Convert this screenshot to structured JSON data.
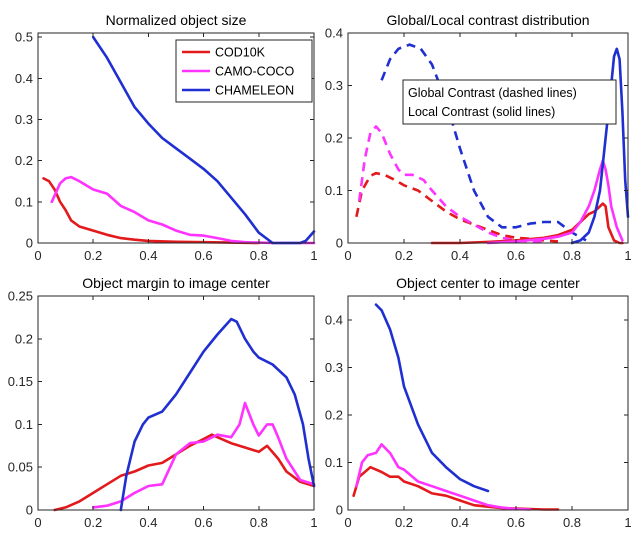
{
  "colors": {
    "COD10K": "#e31a1c",
    "CAMO-COCO": "#ff33ff",
    "CHAMELEON": "#1f2fd1"
  },
  "legend": {
    "location": "top-right of top-left panel",
    "entries": [
      "COD10K",
      "CAMO-COCO",
      "CHAMELEON"
    ]
  },
  "annotation": {
    "lines": [
      "Global Contrast (dashed lines)",
      "Local Contrast (solid lines)"
    ]
  },
  "chart_data": [
    {
      "type": "line",
      "title": "Normalized object size",
      "xlim": [
        0,
        1
      ],
      "ylim": [
        0,
        0.51
      ],
      "xticks": [
        0,
        0.2,
        0.4,
        0.6,
        0.8,
        1
      ],
      "xtick_labels": [
        "0",
        "0.2",
        "0.4",
        "0.6",
        "0.8",
        "1"
      ],
      "yticks": [
        0,
        0.1,
        0.2,
        0.3,
        0.4,
        0.5
      ],
      "ytick_labels": [
        "0",
        "0.1",
        "0.2",
        "0.3",
        "0.4",
        "0.5"
      ],
      "series": [
        {
          "name": "COD10K",
          "style": "solid",
          "x": [
            0.02,
            0.04,
            0.06,
            0.08,
            0.1,
            0.12,
            0.15,
            0.2,
            0.25,
            0.3,
            0.35,
            0.4,
            0.5,
            0.6,
            0.7,
            0.8
          ],
          "y": [
            0.157,
            0.15,
            0.13,
            0.1,
            0.08,
            0.055,
            0.04,
            0.03,
            0.02,
            0.012,
            0.008,
            0.005,
            0.003,
            0.002,
            0.001,
            0.0
          ]
        },
        {
          "name": "CAMO-COCO",
          "style": "solid",
          "x": [
            0.05,
            0.08,
            0.1,
            0.12,
            0.15,
            0.2,
            0.25,
            0.3,
            0.35,
            0.4,
            0.45,
            0.5,
            0.55,
            0.6,
            0.65,
            0.7,
            0.75,
            0.8,
            0.85,
            0.9,
            0.95,
            1.0
          ],
          "y": [
            0.1,
            0.145,
            0.157,
            0.16,
            0.15,
            0.13,
            0.12,
            0.09,
            0.075,
            0.055,
            0.045,
            0.03,
            0.02,
            0.018,
            0.012,
            0.005,
            0.002,
            0.001,
            0.0,
            0.0,
            0.0,
            0.0
          ]
        },
        {
          "name": "CHAMELEON",
          "style": "solid",
          "x": [
            0.2,
            0.25,
            0.3,
            0.35,
            0.4,
            0.45,
            0.5,
            0.55,
            0.6,
            0.65,
            0.7,
            0.75,
            0.8,
            0.85,
            0.9,
            0.95,
            0.97,
            1.0
          ],
          "y": [
            0.5,
            0.45,
            0.39,
            0.33,
            0.29,
            0.255,
            0.23,
            0.205,
            0.18,
            0.15,
            0.11,
            0.07,
            0.025,
            0.0,
            0.0,
            0.0,
            0.005,
            0.028
          ]
        }
      ]
    },
    {
      "type": "line",
      "title": "Global/Local contrast distribution",
      "xlim": [
        0,
        1
      ],
      "ylim": [
        0,
        0.4
      ],
      "xticks": [
        0,
        0.2,
        0.4,
        0.6,
        0.8,
        1
      ],
      "xtick_labels": [
        "0",
        "0.2",
        "0.4",
        "0.6",
        "0.8",
        "1"
      ],
      "yticks": [
        0,
        0.1,
        0.2,
        0.3,
        0.4
      ],
      "ytick_labels": [
        "0",
        "0.1",
        "0.2",
        "0.3",
        "0.4"
      ],
      "series": [
        {
          "name": "COD10K",
          "style": "dashed",
          "x": [
            0.03,
            0.05,
            0.08,
            0.1,
            0.13,
            0.16,
            0.2,
            0.25,
            0.3,
            0.35,
            0.4,
            0.45,
            0.5,
            0.55,
            0.6,
            0.65,
            0.7,
            0.75
          ],
          "y": [
            0.05,
            0.1,
            0.128,
            0.133,
            0.13,
            0.122,
            0.11,
            0.1,
            0.08,
            0.06,
            0.045,
            0.035,
            0.025,
            0.015,
            0.01,
            0.008,
            0.005,
            0.003
          ]
        },
        {
          "name": "CAMO-COCO",
          "style": "dashed",
          "x": [
            0.04,
            0.06,
            0.08,
            0.1,
            0.12,
            0.15,
            0.18,
            0.2,
            0.23,
            0.27,
            0.3,
            0.35,
            0.4,
            0.45,
            0.5,
            0.55,
            0.6,
            0.65,
            0.7
          ],
          "y": [
            0.08,
            0.16,
            0.21,
            0.222,
            0.21,
            0.17,
            0.14,
            0.13,
            0.13,
            0.12,
            0.1,
            0.07,
            0.05,
            0.035,
            0.02,
            0.01,
            0.005,
            0.003,
            0.002
          ]
        },
        {
          "name": "CHAMELEON",
          "style": "dashed",
          "x": [
            0.12,
            0.15,
            0.18,
            0.22,
            0.26,
            0.3,
            0.35,
            0.4,
            0.45,
            0.5,
            0.55,
            0.6,
            0.65,
            0.7,
            0.75,
            0.8,
            0.85
          ],
          "y": [
            0.31,
            0.35,
            0.37,
            0.378,
            0.37,
            0.34,
            0.27,
            0.18,
            0.1,
            0.05,
            0.03,
            0.03,
            0.037,
            0.04,
            0.04,
            0.02,
            0.005
          ]
        },
        {
          "name": "COD10K",
          "style": "solid",
          "x": [
            0.3,
            0.4,
            0.5,
            0.6,
            0.7,
            0.75,
            0.8,
            0.83,
            0.86,
            0.88,
            0.9,
            0.91,
            0.92,
            0.93,
            0.95,
            0.97,
            0.98
          ],
          "y": [
            0.0,
            0.0,
            0.002,
            0.005,
            0.01,
            0.015,
            0.025,
            0.04,
            0.055,
            0.06,
            0.07,
            0.075,
            0.07,
            0.03,
            0.005,
            0.0,
            0.0
          ]
        },
        {
          "name": "CAMO-COCO",
          "style": "solid",
          "x": [
            0.5,
            0.6,
            0.7,
            0.75,
            0.8,
            0.83,
            0.86,
            0.88,
            0.9,
            0.91,
            0.92,
            0.93,
            0.94,
            0.96,
            0.98
          ],
          "y": [
            0.0,
            0.003,
            0.008,
            0.012,
            0.02,
            0.04,
            0.07,
            0.1,
            0.14,
            0.157,
            0.14,
            0.11,
            0.07,
            0.03,
            0.005
          ]
        },
        {
          "name": "CHAMELEON",
          "style": "solid",
          "x": [
            0.8,
            0.83,
            0.86,
            0.88,
            0.9,
            0.92,
            0.94,
            0.95,
            0.96,
            0.97,
            0.98,
            0.99,
            1.0
          ],
          "y": [
            0.0,
            0.005,
            0.02,
            0.05,
            0.1,
            0.2,
            0.3,
            0.355,
            0.37,
            0.35,
            0.25,
            0.12,
            0.05
          ]
        }
      ]
    },
    {
      "type": "line",
      "title": "Object margin to image center",
      "xlim": [
        0,
        1
      ],
      "ylim": [
        0,
        0.25
      ],
      "xticks": [
        0,
        0.2,
        0.4,
        0.6,
        0.8,
        1
      ],
      "xtick_labels": [
        "0",
        "0.2",
        "0.4",
        "0.6",
        "0.8",
        "1"
      ],
      "yticks": [
        0,
        0.05,
        0.1,
        0.15,
        0.2,
        0.25
      ],
      "ytick_labels": [
        "0",
        "0.05",
        "0.1",
        "0.15",
        "0.2",
        "0.25"
      ],
      "series": [
        {
          "name": "COD10K",
          "style": "solid",
          "x": [
            0.06,
            0.1,
            0.15,
            0.2,
            0.25,
            0.3,
            0.35,
            0.4,
            0.45,
            0.5,
            0.55,
            0.6,
            0.63,
            0.65,
            0.7,
            0.75,
            0.8,
            0.83,
            0.87,
            0.9,
            0.95,
            1.0
          ],
          "y": [
            0.0,
            0.003,
            0.01,
            0.02,
            0.03,
            0.04,
            0.045,
            0.052,
            0.055,
            0.065,
            0.075,
            0.083,
            0.088,
            0.085,
            0.078,
            0.073,
            0.068,
            0.075,
            0.06,
            0.045,
            0.033,
            0.028
          ]
        },
        {
          "name": "CAMO-COCO",
          "style": "solid",
          "x": [
            0.2,
            0.25,
            0.3,
            0.35,
            0.4,
            0.45,
            0.5,
            0.55,
            0.6,
            0.65,
            0.7,
            0.73,
            0.75,
            0.78,
            0.8,
            0.83,
            0.85,
            0.87,
            0.9,
            0.95,
            1.0
          ],
          "y": [
            0.003,
            0.005,
            0.01,
            0.02,
            0.028,
            0.03,
            0.065,
            0.078,
            0.08,
            0.088,
            0.085,
            0.1,
            0.125,
            0.1,
            0.087,
            0.1,
            0.1,
            0.085,
            0.06,
            0.035,
            0.03
          ]
        },
        {
          "name": "CHAMELEON",
          "style": "solid",
          "x": [
            0.3,
            0.32,
            0.35,
            0.38,
            0.4,
            0.45,
            0.5,
            0.55,
            0.6,
            0.65,
            0.7,
            0.72,
            0.75,
            0.78,
            0.8,
            0.85,
            0.9,
            0.93,
            0.96,
            0.98,
            1.0
          ],
          "y": [
            0.0,
            0.04,
            0.08,
            0.1,
            0.108,
            0.115,
            0.135,
            0.16,
            0.185,
            0.205,
            0.223,
            0.22,
            0.2,
            0.185,
            0.178,
            0.17,
            0.155,
            0.135,
            0.1,
            0.06,
            0.028
          ]
        }
      ]
    },
    {
      "type": "line",
      "title": "Object center to image center",
      "xlim": [
        0,
        1
      ],
      "ylim": [
        0,
        0.45
      ],
      "xticks": [
        0,
        0.2,
        0.4,
        0.6,
        0.8,
        1
      ],
      "xtick_labels": [
        "0",
        "0.2",
        "0.4",
        "0.6",
        "0.8",
        "1"
      ],
      "yticks": [
        0,
        0.1,
        0.2,
        0.3,
        0.4
      ],
      "ytick_labels": [
        "0",
        "0.1",
        "0.2",
        "0.3",
        "0.4"
      ],
      "series": [
        {
          "name": "COD10K",
          "style": "solid",
          "x": [
            0.02,
            0.04,
            0.06,
            0.08,
            0.1,
            0.12,
            0.15,
            0.18,
            0.2,
            0.25,
            0.3,
            0.35,
            0.4,
            0.45,
            0.5,
            0.55,
            0.6,
            0.65,
            0.7,
            0.75
          ],
          "y": [
            0.03,
            0.07,
            0.08,
            0.09,
            0.085,
            0.08,
            0.07,
            0.07,
            0.06,
            0.05,
            0.035,
            0.03,
            0.02,
            0.01,
            0.007,
            0.004,
            0.003,
            0.002,
            0.001,
            0.001
          ]
        },
        {
          "name": "CAMO-COCO",
          "style": "solid",
          "x": [
            0.03,
            0.05,
            0.07,
            0.1,
            0.12,
            0.15,
            0.18,
            0.2,
            0.25,
            0.3,
            0.35,
            0.4,
            0.45,
            0.5,
            0.55,
            0.6,
            0.65
          ],
          "y": [
            0.05,
            0.1,
            0.115,
            0.12,
            0.138,
            0.12,
            0.09,
            0.085,
            0.06,
            0.05,
            0.04,
            0.03,
            0.02,
            0.01,
            0.005,
            0.002,
            0.001
          ]
        },
        {
          "name": "CHAMELEON",
          "style": "solid",
          "x": [
            0.1,
            0.12,
            0.15,
            0.18,
            0.2,
            0.25,
            0.3,
            0.35,
            0.4,
            0.45,
            0.5
          ],
          "y": [
            0.432,
            0.42,
            0.38,
            0.32,
            0.26,
            0.18,
            0.12,
            0.09,
            0.065,
            0.05,
            0.04
          ]
        }
      ]
    }
  ]
}
